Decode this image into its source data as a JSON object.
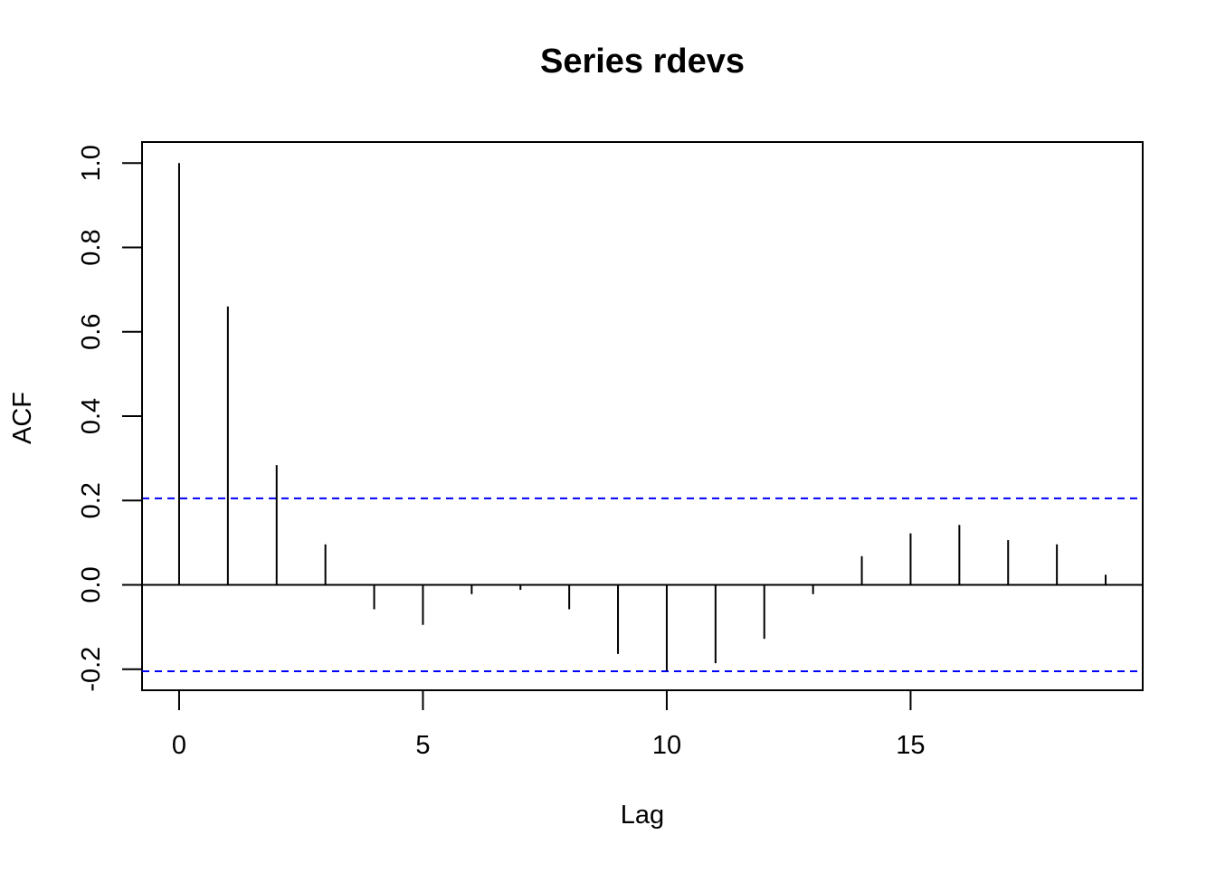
{
  "chart_data": {
    "type": "bar",
    "title": "Series  rdevs",
    "xlabel": "Lag",
    "ylabel": "ACF",
    "x": [
      0,
      1,
      2,
      3,
      4,
      5,
      6,
      7,
      8,
      9,
      10,
      11,
      12,
      13,
      14,
      15,
      16,
      17,
      18,
      19
    ],
    "values": [
      1.0,
      0.66,
      0.284,
      0.096,
      -0.058,
      -0.095,
      -0.022,
      -0.012,
      -0.058,
      -0.164,
      -0.204,
      -0.186,
      -0.128,
      -0.022,
      0.068,
      0.122,
      0.142,
      0.106,
      0.096,
      0.024
    ],
    "confidence_bounds": [
      0.205,
      -0.205
    ],
    "confidence_color": "#0000ff",
    "bar_color": "#000000",
    "xlim": [
      -0.76,
      19.76
    ],
    "ylim": [
      -0.25,
      1.05
    ],
    "xticks": [
      0,
      5,
      10,
      15
    ],
    "xtick_labels": [
      "0",
      "5",
      "10",
      "15"
    ],
    "yticks": [
      -0.2,
      0.0,
      0.2,
      0.4,
      0.6,
      0.8,
      1.0
    ],
    "ytick_labels": [
      "-0.2",
      "0.0",
      "0.2",
      "0.4",
      "0.6",
      "0.8",
      "1.0"
    ],
    "grid": false,
    "legend": "none"
  }
}
